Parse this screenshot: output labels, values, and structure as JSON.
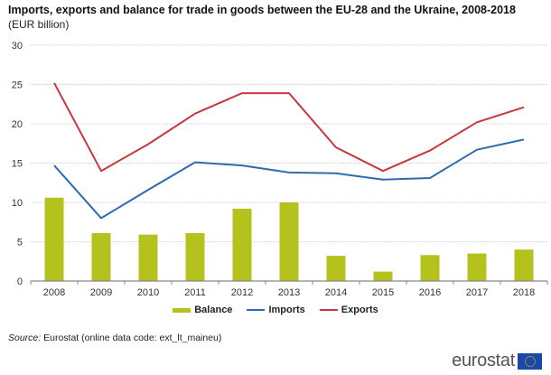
{
  "header": {
    "title": "Imports, exports and balance for trade in goods between the EU-28 and the Ukraine, 2008-2018",
    "subtitle": "(EUR billion)"
  },
  "chart_data": {
    "type": "bar+line",
    "title": "Imports, exports and balance for trade in goods between the EU-28 and the Ukraine, 2008-2018",
    "subtitle": "(EUR billion)",
    "xlabel": "",
    "ylabel": "EUR billion",
    "categories": [
      "2008",
      "2009",
      "2010",
      "2011",
      "2012",
      "2013",
      "2014",
      "2015",
      "2016",
      "2017",
      "2018"
    ],
    "ylim": [
      0,
      30
    ],
    "yticks": [
      0,
      5,
      10,
      15,
      20,
      25,
      30
    ],
    "grid": true,
    "legend_position": "bottom-center",
    "series": [
      {
        "name": "Balance",
        "type": "bar",
        "color": "#b5c11c",
        "values": [
          10.6,
          6.1,
          5.9,
          6.1,
          9.2,
          10.0,
          3.2,
          1.2,
          3.3,
          3.5,
          4.0
        ]
      },
      {
        "name": "Imports",
        "type": "line",
        "color": "#2e6aad",
        "values": [
          14.7,
          8.0,
          11.6,
          15.1,
          14.7,
          13.8,
          13.7,
          12.9,
          13.1,
          16.7,
          18.0
        ]
      },
      {
        "name": "Exports",
        "type": "line",
        "color": "#c8373f",
        "values": [
          25.2,
          14.0,
          17.4,
          21.3,
          23.9,
          23.9,
          17.0,
          14.0,
          16.6,
          20.2,
          22.1
        ]
      }
    ]
  },
  "legend": {
    "items": [
      {
        "label": "Balance",
        "color": "#b5c11c",
        "kind": "bar"
      },
      {
        "label": "Imports",
        "color": "#2e6aad",
        "kind": "line"
      },
      {
        "label": "Exports",
        "color": "#c8373f",
        "kind": "line"
      }
    ]
  },
  "footer": {
    "source_label": "Source:",
    "source_text": " Eurostat (online data code: ext_lt_maineu)",
    "logo_text": "eurostat"
  }
}
